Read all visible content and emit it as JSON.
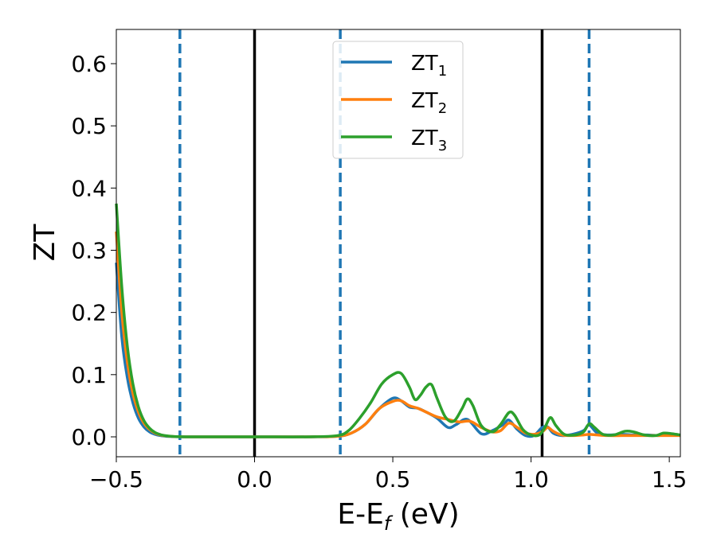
{
  "chart_data": {
    "type": "line",
    "xlabel": {
      "main": "E-E",
      "sub": "f",
      "unit": " (eV)"
    },
    "ylabel": "ZT",
    "xlim": [
      -0.5,
      1.54
    ],
    "ylim": [
      -0.032,
      0.655
    ],
    "xticks": [
      {
        "value": -0.5,
        "label": "−0.5"
      },
      {
        "value": 0.0,
        "label": "0.0"
      },
      {
        "value": 0.5,
        "label": "0.5"
      },
      {
        "value": 1.0,
        "label": "1.0"
      },
      {
        "value": 1.5,
        "label": "1.5"
      }
    ],
    "yticks": [
      {
        "value": 0.0,
        "label": "0.0"
      },
      {
        "value": 0.1,
        "label": "0.1"
      },
      {
        "value": 0.2,
        "label": "0.2"
      },
      {
        "value": 0.3,
        "label": "0.3"
      },
      {
        "value": 0.4,
        "label": "0.4"
      },
      {
        "value": 0.5,
        "label": "0.5"
      },
      {
        "value": 0.6,
        "label": "0.6"
      }
    ],
    "grid": false,
    "legend_placement": "upper-center",
    "vertical_lines": [
      {
        "x": -0.27,
        "style": "dashed",
        "color": "#1f77b4"
      },
      {
        "x": 0.0,
        "style": "solid",
        "color": "#000000"
      },
      {
        "x": 0.31,
        "style": "dashed",
        "color": "#1f77b4"
      },
      {
        "x": 1.04,
        "style": "solid",
        "color": "#000000"
      },
      {
        "x": 1.21,
        "style": "dashed",
        "color": "#1f77b4"
      }
    ],
    "series": [
      {
        "name": "ZT",
        "sub": "1",
        "color": "#1f77b4",
        "x": [
          -0.5,
          -0.48,
          -0.46,
          -0.44,
          -0.42,
          -0.4,
          -0.38,
          -0.36,
          -0.34,
          -0.32,
          -0.3,
          -0.28,
          -0.25,
          -0.2,
          0.0,
          0.2,
          0.3,
          0.35,
          0.4,
          0.45,
          0.5,
          0.53,
          0.56,
          0.59,
          0.62,
          0.66,
          0.7,
          0.73,
          0.77,
          0.82,
          0.86,
          0.9,
          0.92,
          0.95,
          0.98,
          1.01,
          1.04,
          1.06,
          1.08,
          1.11,
          1.15,
          1.19,
          1.21,
          1.24,
          1.28,
          1.33,
          1.37,
          1.42,
          1.46,
          1.5,
          1.54
        ],
        "y": [
          0.28,
          0.16,
          0.095,
          0.055,
          0.03,
          0.016,
          0.008,
          0.004,
          0.002,
          0.001,
          0.0005,
          0.0002,
          0.0,
          0.0,
          0.0,
          0.0,
          0.001,
          0.006,
          0.02,
          0.045,
          0.062,
          0.058,
          0.048,
          0.046,
          0.04,
          0.03,
          0.015,
          0.02,
          0.028,
          0.005,
          0.01,
          0.02,
          0.027,
          0.012,
          0.002,
          0.002,
          0.015,
          0.016,
          0.006,
          0.002,
          0.004,
          0.01,
          0.019,
          0.006,
          0.003,
          0.004,
          0.003,
          0.003,
          0.002,
          0.003,
          0.002
        ]
      },
      {
        "name": "ZT",
        "sub": "2",
        "color": "#ff7f0e",
        "x": [
          -0.5,
          -0.48,
          -0.46,
          -0.44,
          -0.42,
          -0.4,
          -0.38,
          -0.36,
          -0.34,
          -0.32,
          -0.3,
          -0.28,
          -0.25,
          -0.2,
          0.0,
          0.2,
          0.3,
          0.35,
          0.4,
          0.45,
          0.5,
          0.53,
          0.56,
          0.59,
          0.62,
          0.66,
          0.7,
          0.74,
          0.78,
          0.82,
          0.86,
          0.89,
          0.92,
          0.95,
          0.98,
          1.01,
          1.04,
          1.06,
          1.08,
          1.11,
          1.15,
          1.19,
          1.21,
          1.24,
          1.28,
          1.33,
          1.37,
          1.42,
          1.46,
          1.5,
          1.54
        ],
        "y": [
          0.33,
          0.2,
          0.12,
          0.07,
          0.04,
          0.022,
          0.012,
          0.006,
          0.003,
          0.0015,
          0.0007,
          0.0003,
          0.0,
          0.0,
          0.0,
          0.0,
          0.001,
          0.006,
          0.02,
          0.045,
          0.057,
          0.058,
          0.05,
          0.046,
          0.04,
          0.032,
          0.028,
          0.024,
          0.025,
          0.015,
          0.008,
          0.01,
          0.022,
          0.015,
          0.006,
          0.004,
          0.008,
          0.015,
          0.009,
          0.003,
          0.002,
          0.003,
          0.004,
          0.003,
          0.002,
          0.002,
          0.002,
          0.002,
          0.002,
          0.002,
          0.002
        ]
      },
      {
        "name": "ZT",
        "sub": "3",
        "color": "#2ca02c",
        "x": [
          -0.5,
          -0.48,
          -0.46,
          -0.44,
          -0.42,
          -0.4,
          -0.38,
          -0.36,
          -0.34,
          -0.32,
          -0.3,
          -0.28,
          -0.25,
          -0.2,
          0.0,
          0.2,
          0.3,
          0.34,
          0.38,
          0.42,
          0.46,
          0.5,
          0.53,
          0.56,
          0.58,
          0.6,
          0.62,
          0.64,
          0.66,
          0.69,
          0.72,
          0.75,
          0.77,
          0.79,
          0.82,
          0.86,
          0.89,
          0.92,
          0.94,
          0.97,
          1.0,
          1.03,
          1.05,
          1.07,
          1.09,
          1.12,
          1.16,
          1.19,
          1.21,
          1.23,
          1.26,
          1.3,
          1.34,
          1.37,
          1.41,
          1.45,
          1.48,
          1.51,
          1.54
        ],
        "y": [
          0.375,
          0.24,
          0.145,
          0.085,
          0.048,
          0.026,
          0.014,
          0.007,
          0.0035,
          0.0017,
          0.0008,
          0.0003,
          0.0,
          0.0,
          0.0,
          0.0,
          0.002,
          0.01,
          0.03,
          0.055,
          0.085,
          0.1,
          0.102,
          0.08,
          0.06,
          0.067,
          0.08,
          0.084,
          0.062,
          0.032,
          0.025,
          0.045,
          0.061,
          0.05,
          0.018,
          0.008,
          0.02,
          0.039,
          0.035,
          0.012,
          0.003,
          0.003,
          0.015,
          0.031,
          0.018,
          0.004,
          0.003,
          0.008,
          0.021,
          0.015,
          0.004,
          0.003,
          0.009,
          0.008,
          0.003,
          0.002,
          0.006,
          0.005,
          0.003
        ]
      }
    ]
  }
}
